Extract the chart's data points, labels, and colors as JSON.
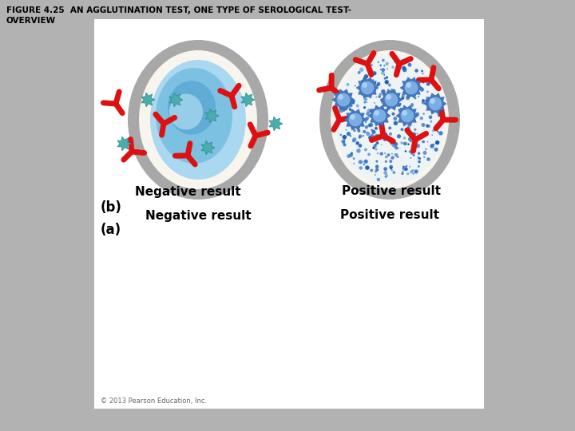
{
  "title": "FIGURE 4.25  AN AGGLUTINATION TEST, ONE TYPE OF SEROLOGICAL TEST-\nOVERVIEW",
  "title_fontsize": 7.5,
  "background_color": "#b2b2b2",
  "panel_bg": "#ffffff",
  "label_a": "(a)",
  "label_b": "(b)",
  "neg_label": "Negative result",
  "pos_label": "Positive result",
  "label_fontsize": 11,
  "copyright": "© 2013 Pearson Education, Inc.",
  "gray_ring": "#a8a8a8",
  "white_inner": "#f8f5ee",
  "red_color": "#dd1111",
  "teal_color": "#4aadad",
  "blue_antigen": "#5588cc",
  "blue_antigen_light": "#88bbee"
}
